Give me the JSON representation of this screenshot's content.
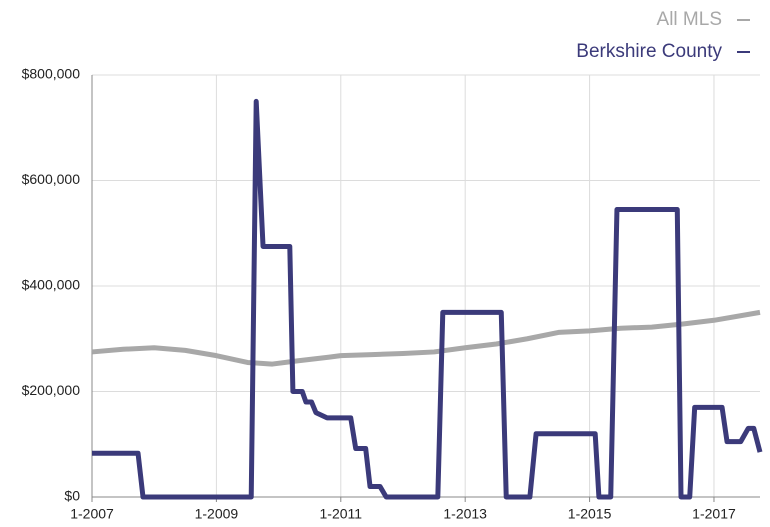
{
  "chart_data": {
    "type": "line",
    "series": [
      {
        "name": "All MLS",
        "color": "#a8a8a8",
        "x": [
          2007,
          2007.5,
          2008,
          2008.5,
          2009,
          2009.5,
          2009.9,
          2010.3,
          2010.8,
          2011,
          2011.5,
          2012,
          2012.5,
          2013,
          2013.5,
          2014,
          2014.5,
          2015,
          2015.5,
          2016,
          2016.5,
          2017,
          2017.74
        ],
        "values": [
          275000,
          280000,
          283000,
          278000,
          268000,
          255000,
          252000,
          258000,
          265000,
          268000,
          270000,
          272000,
          275000,
          283000,
          290000,
          300000,
          312000,
          315000,
          320000,
          322000,
          328000,
          335000,
          350000
        ]
      },
      {
        "name": "Berkshire County",
        "color": "#3b3a7a",
        "x": [
          2007,
          2007.74,
          2007.82,
          2009.56,
          2009.64,
          2009.75,
          2010.18,
          2010.23,
          2010.38,
          2010.44,
          2010.53,
          2010.6,
          2010.78,
          2011.16,
          2011.24,
          2011.4,
          2011.47,
          2011.63,
          2011.73,
          2012.56,
          2012.64,
          2013.58,
          2013.66,
          2014.04,
          2014.14,
          2015.09,
          2015.15,
          2015.34,
          2015.44,
          2016.41,
          2016.47,
          2016.61,
          2016.69,
          2017.13,
          2017.21,
          2017.43,
          2017.55,
          2017.64,
          2017.74
        ],
        "values": [
          83000,
          83000,
          0,
          0,
          750000,
          475000,
          475000,
          200000,
          200000,
          180000,
          180000,
          160000,
          150000,
          150000,
          92000,
          92000,
          20000,
          20000,
          0,
          0,
          350000,
          350000,
          0,
          0,
          120000,
          120000,
          0,
          0,
          545000,
          545000,
          0,
          0,
          170000,
          170000,
          105000,
          105000,
          130000,
          130000,
          85000
        ]
      }
    ],
    "xlim": [
      2007,
      2017.74
    ],
    "xticks": [
      {
        "value": 2007,
        "label": "1-2007"
      },
      {
        "value": 2009,
        "label": "1-2009"
      },
      {
        "value": 2011,
        "label": "1-2011"
      },
      {
        "value": 2013,
        "label": "1-2013"
      },
      {
        "value": 2015,
        "label": "1-2015"
      },
      {
        "value": 2017,
        "label": "1-2017"
      }
    ],
    "ylim": [
      0,
      800000
    ],
    "yticks": [
      {
        "value": 0,
        "label": "$0"
      },
      {
        "value": 200000,
        "label": "$200,000"
      },
      {
        "value": 400000,
        "label": "$400,000"
      },
      {
        "value": 600000,
        "label": "$600,000"
      },
      {
        "value": 800000,
        "label": "$800,000"
      }
    ],
    "grid": true
  }
}
